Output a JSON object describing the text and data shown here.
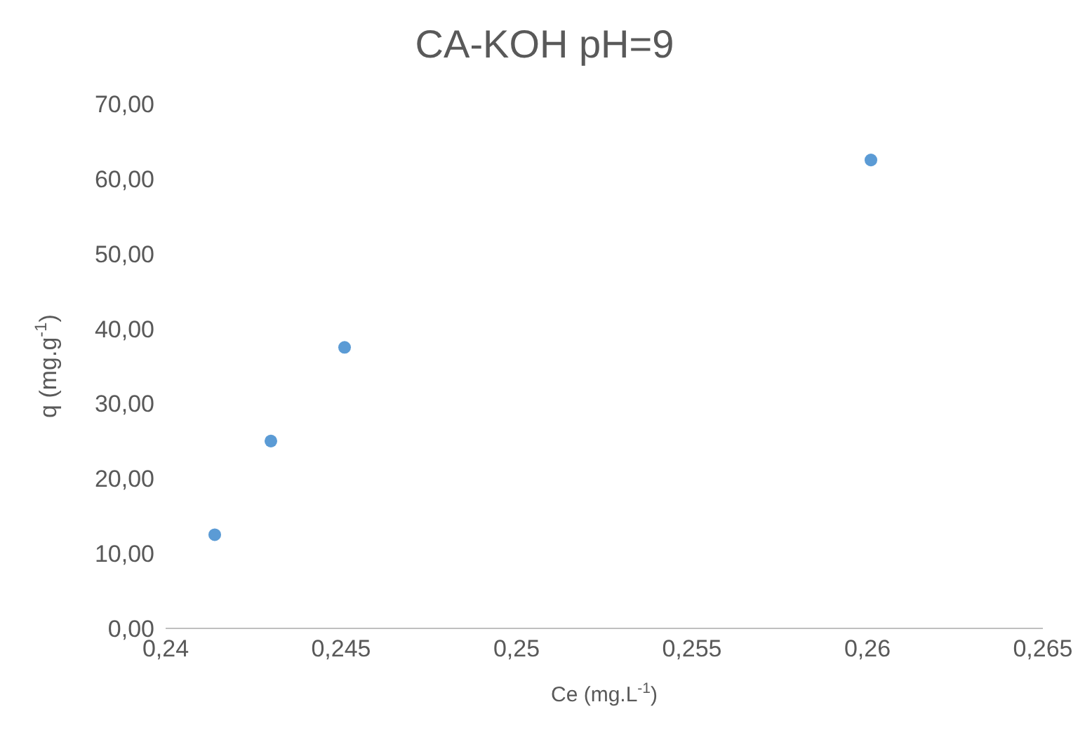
{
  "chart_data": {
    "type": "scatter",
    "title": "CA-KOH pH=9",
    "xlabel": "Ce (mg.L$^{-1}$)",
    "ylabel": "q (mg.g$^{-1}$)",
    "x": [
      0.2414,
      0.243,
      0.2451,
      0.2601
    ],
    "series": [
      {
        "color": "#5b9bd5",
        "values": [
          12.5,
          25,
          37.5,
          62.5
        ]
      }
    ],
    "xlim": [
      0.24,
      0.265
    ],
    "xticks": [
      {
        "value": 0.24,
        "label": "0,24"
      },
      {
        "value": 0.245,
        "label": "0,245"
      },
      {
        "value": 0.25,
        "label": "0,25"
      },
      {
        "value": 0.255,
        "label": "0,255"
      },
      {
        "value": 0.26,
        "label": "0,26"
      },
      {
        "value": 0.265,
        "label": "0,265"
      }
    ],
    "ylim": [
      0,
      70
    ],
    "yticks": [
      {
        "value": 0,
        "label": "0,00"
      },
      {
        "value": 10,
        "label": "10,00"
      },
      {
        "value": 20,
        "label": "20,00"
      },
      {
        "value": 30,
        "label": "30,00"
      },
      {
        "value": 40,
        "label": "40,00"
      },
      {
        "value": 50,
        "label": "50,00"
      },
      {
        "value": 60,
        "label": "60,00"
      },
      {
        "value": 70,
        "label": "70,00"
      }
    ],
    "grid": false,
    "marker": "circle"
  }
}
